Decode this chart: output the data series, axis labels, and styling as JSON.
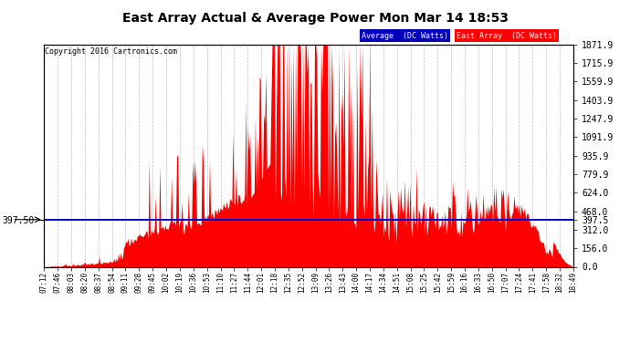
{
  "title": "East Array Actual & Average Power Mon Mar 14 18:53",
  "copyright": "Copyright 2016 Cartronics.com",
  "bg_color": "#ffffff",
  "plot_bg_color": "#ffffff",
  "grid_color": "#aaaaaa",
  "avg_line_color": "#0000cc",
  "east_array_color": "#ff0000",
  "avg_label": "Average  (DC Watts)",
  "east_label": "East Array  (DC Watts)",
  "avg_label_bg": "#0000bb",
  "east_label_bg": "#ff0000",
  "hline_value": 397.5,
  "yticks_right": [
    0.0,
    156.0,
    312.0,
    468.0,
    624.0,
    779.9,
    935.9,
    1091.9,
    1247.9,
    1403.9,
    1559.9,
    1715.9,
    1871.9
  ],
  "ytick_left_label": "397.50",
  "ymax": 1871.9,
  "ymin": 0.0,
  "x_labels": [
    "07:12",
    "07:46",
    "08:03",
    "08:20",
    "08:37",
    "08:54",
    "09:11",
    "09:28",
    "09:45",
    "10:02",
    "10:19",
    "10:36",
    "10:53",
    "11:10",
    "11:27",
    "11:44",
    "12:01",
    "12:18",
    "12:35",
    "12:52",
    "13:09",
    "13:26",
    "13:43",
    "14:00",
    "14:17",
    "14:34",
    "14:51",
    "15:08",
    "15:25",
    "15:42",
    "15:59",
    "16:16",
    "16:33",
    "16:50",
    "17:07",
    "17:24",
    "17:41",
    "17:58",
    "18:32",
    "18:49"
  ]
}
